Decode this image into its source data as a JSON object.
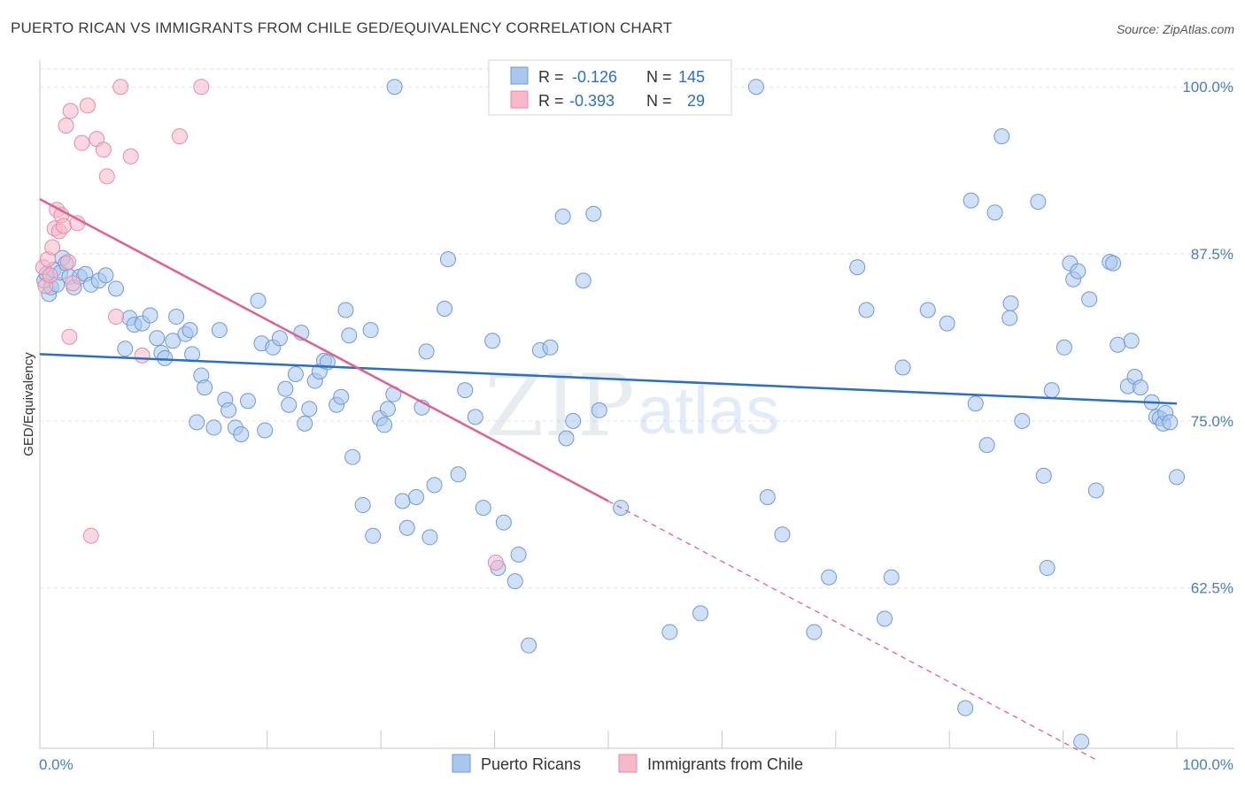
{
  "header": {
    "title": "PUERTO RICAN VS IMMIGRANTS FROM CHILE GED/EQUIVALENCY CORRELATION CHART",
    "source": "Source: ZipAtlas.com"
  },
  "watermark": {
    "zip": "ZIP",
    "atlas": "atlas"
  },
  "stats_legend": {
    "rows": [
      {
        "r_label": "R = ",
        "r_value": "-0.126",
        "n_label": "N = ",
        "n_value": "145",
        "color": "#a9c6ef"
      },
      {
        "r_label": "R = ",
        "r_value": "-0.393",
        "n_label": "N = ",
        "n_value": "29",
        "color": "#f5b8cb"
      }
    ]
  },
  "chart_data": {
    "type": "scatter",
    "title": "PUERTO RICAN VS IMMIGRANTS FROM CHILE GED/EQUIVALENCY CORRELATION CHART",
    "xlabel": "",
    "ylabel": "GED/Equivalency",
    "xlim": [
      0,
      100
    ],
    "ylim": [
      50.5,
      102
    ],
    "x_tick_labels": [
      "0.0%",
      "100.0%"
    ],
    "y_ticks": [
      {
        "value": 62.5,
        "label": "62.5%"
      },
      {
        "value": 75.0,
        "label": "75.0%"
      },
      {
        "value": 87.5,
        "label": "87.5%"
      },
      {
        "value": 100.0,
        "label": "100.0%"
      }
    ],
    "grid": "horizontal-dashed",
    "legend_position": "bottom-center",
    "colors": {
      "blue": "#a9c6ef",
      "blue_stroke": "#6e9ad6",
      "blue_line": "#2a6ecb",
      "pink": "#f5b8cb",
      "pink_stroke": "#e88aa6",
      "pink_line": "#e06090"
    },
    "series": [
      {
        "name": "Puerto Ricans",
        "r": -0.126,
        "n": 145,
        "trend": {
          "x": [
            0,
            100
          ],
          "y": [
            80.0,
            76.3
          ]
        },
        "points": [
          [
            0.4,
            85.5
          ],
          [
            0.6,
            86.0
          ],
          [
            0.8,
            84.5
          ],
          [
            1.0,
            85.0
          ],
          [
            1.2,
            86.3
          ],
          [
            1.5,
            85.2
          ],
          [
            1.8,
            86.1
          ],
          [
            2.0,
            87.2
          ],
          [
            2.3,
            86.8
          ],
          [
            2.6,
            85.8
          ],
          [
            3.0,
            85.0
          ],
          [
            3.5,
            85.8
          ],
          [
            4.0,
            86.0
          ],
          [
            4.5,
            85.2
          ],
          [
            5.2,
            85.5
          ],
          [
            5.8,
            85.9
          ],
          [
            6.7,
            84.9
          ],
          [
            7.5,
            80.4
          ],
          [
            7.9,
            82.7
          ],
          [
            8.3,
            82.2
          ],
          [
            9.0,
            82.3
          ],
          [
            9.7,
            82.9
          ],
          [
            10.3,
            81.2
          ],
          [
            10.7,
            80.1
          ],
          [
            11.0,
            79.7
          ],
          [
            11.7,
            81.0
          ],
          [
            12.0,
            82.8
          ],
          [
            12.8,
            81.5
          ],
          [
            13.2,
            81.8
          ],
          [
            13.4,
            80.0
          ],
          [
            13.8,
            74.9
          ],
          [
            14.2,
            78.4
          ],
          [
            14.5,
            77.5
          ],
          [
            15.3,
            74.5
          ],
          [
            15.8,
            81.8
          ],
          [
            16.3,
            76.6
          ],
          [
            16.6,
            75.8
          ],
          [
            17.2,
            74.5
          ],
          [
            17.7,
            74.0
          ],
          [
            18.3,
            76.5
          ],
          [
            19.2,
            84.0
          ],
          [
            19.5,
            80.8
          ],
          [
            19.8,
            74.3
          ],
          [
            20.5,
            80.5
          ],
          [
            21.1,
            81.2
          ],
          [
            21.6,
            77.4
          ],
          [
            21.9,
            76.2
          ],
          [
            22.5,
            78.5
          ],
          [
            23.0,
            81.6
          ],
          [
            23.3,
            74.8
          ],
          [
            23.7,
            75.9
          ],
          [
            24.2,
            78.0
          ],
          [
            24.6,
            78.7
          ],
          [
            25.0,
            79.5
          ],
          [
            25.3,
            79.4
          ],
          [
            26.1,
            76.2
          ],
          [
            26.5,
            76.8
          ],
          [
            26.9,
            83.3
          ],
          [
            27.2,
            81.4
          ],
          [
            27.5,
            72.3
          ],
          [
            28.4,
            68.7
          ],
          [
            29.1,
            81.8
          ],
          [
            29.3,
            66.4
          ],
          [
            29.9,
            75.2
          ],
          [
            30.6,
            75.9
          ],
          [
            30.3,
            74.7
          ],
          [
            31.1,
            77.0
          ],
          [
            31.9,
            69.0
          ],
          [
            32.3,
            67.0
          ],
          [
            33.1,
            69.3
          ],
          [
            33.6,
            76.0
          ],
          [
            34.0,
            80.2
          ],
          [
            34.3,
            66.3
          ],
          [
            34.7,
            70.2
          ],
          [
            35.6,
            83.4
          ],
          [
            35.9,
            87.1
          ],
          [
            36.8,
            71.0
          ],
          [
            37.4,
            77.3
          ],
          [
            38.3,
            75.3
          ],
          [
            39.0,
            68.5
          ],
          [
            39.8,
            81.0
          ],
          [
            40.3,
            64.0
          ],
          [
            40.8,
            67.4
          ],
          [
            41.8,
            63.0
          ],
          [
            42.1,
            65.0
          ],
          [
            43.0,
            58.2
          ],
          [
            44.0,
            80.3
          ],
          [
            44.9,
            80.5
          ],
          [
            46.0,
            90.3
          ],
          [
            46.3,
            73.7
          ],
          [
            46.9,
            75.0
          ],
          [
            47.8,
            85.5
          ],
          [
            48.7,
            90.5
          ],
          [
            49.2,
            75.8
          ],
          [
            51.1,
            68.5
          ],
          [
            31.2,
            100.0
          ],
          [
            53.8,
            100.0
          ],
          [
            59.6,
            100.0
          ],
          [
            60.1,
            100.0
          ],
          [
            63.0,
            100.0
          ],
          [
            55.4,
            59.2
          ],
          [
            58.1,
            60.6
          ],
          [
            64.0,
            69.3
          ],
          [
            65.3,
            66.5
          ],
          [
            68.1,
            59.2
          ],
          [
            69.4,
            63.3
          ],
          [
            71.9,
            86.5
          ],
          [
            72.7,
            83.3
          ],
          [
            74.3,
            60.2
          ],
          [
            74.9,
            63.3
          ],
          [
            75.9,
            79.0
          ],
          [
            78.1,
            83.3
          ],
          [
            79.8,
            82.3
          ],
          [
            81.9,
            91.5
          ],
          [
            84.0,
            90.6
          ],
          [
            81.4,
            53.5
          ],
          [
            82.3,
            76.3
          ],
          [
            83.3,
            73.2
          ],
          [
            84.6,
            96.3
          ],
          [
            85.4,
            83.8
          ],
          [
            85.3,
            82.7
          ],
          [
            86.4,
            75.0
          ],
          [
            87.8,
            91.4
          ],
          [
            88.3,
            70.9
          ],
          [
            88.6,
            64.0
          ],
          [
            89.0,
            77.3
          ],
          [
            90.1,
            80.5
          ],
          [
            90.6,
            86.8
          ],
          [
            90.9,
            85.6
          ],
          [
            91.3,
            86.2
          ],
          [
            91.6,
            51.0
          ],
          [
            92.3,
            84.1
          ],
          [
            92.9,
            69.8
          ],
          [
            94.1,
            86.9
          ],
          [
            94.4,
            86.8
          ],
          [
            94.8,
            80.7
          ],
          [
            95.7,
            77.6
          ],
          [
            96.0,
            81.0
          ],
          [
            96.3,
            78.3
          ],
          [
            96.8,
            77.5
          ],
          [
            97.8,
            76.4
          ],
          [
            98.2,
            75.3
          ],
          [
            98.5,
            75.2
          ],
          [
            98.8,
            74.8
          ],
          [
            99.0,
            75.6
          ],
          [
            99.4,
            74.9
          ],
          [
            100.0,
            70.8
          ]
        ]
      },
      {
        "name": "Immigrants from Chile",
        "r": -0.393,
        "n": 29,
        "trend": {
          "x": [
            0,
            50
          ],
          "y": [
            91.6,
            69.0
          ],
          "dashed_to": {
            "x": 93,
            "y": 49.6
          }
        },
        "points": [
          [
            0.3,
            86.5
          ],
          [
            0.5,
            85.1
          ],
          [
            0.7,
            87.1
          ],
          [
            0.9,
            85.9
          ],
          [
            1.1,
            88.0
          ],
          [
            1.3,
            89.4
          ],
          [
            1.5,
            90.8
          ],
          [
            1.7,
            89.2
          ],
          [
            1.9,
            90.4
          ],
          [
            2.1,
            89.6
          ],
          [
            2.3,
            97.1
          ],
          [
            2.5,
            86.9
          ],
          [
            2.7,
            98.2
          ],
          [
            2.9,
            85.3
          ],
          [
            2.6,
            81.3
          ],
          [
            3.3,
            89.8
          ],
          [
            3.7,
            95.8
          ],
          [
            4.2,
            98.6
          ],
          [
            4.5,
            66.4
          ],
          [
            5.0,
            96.1
          ],
          [
            5.6,
            95.3
          ],
          [
            5.9,
            93.3
          ],
          [
            6.7,
            82.8
          ],
          [
            7.1,
            100.0
          ],
          [
            8.0,
            94.8
          ],
          [
            9.0,
            79.9
          ],
          [
            12.3,
            96.3
          ],
          [
            14.2,
            100.0
          ],
          [
            40.1,
            64.4
          ]
        ]
      }
    ]
  }
}
